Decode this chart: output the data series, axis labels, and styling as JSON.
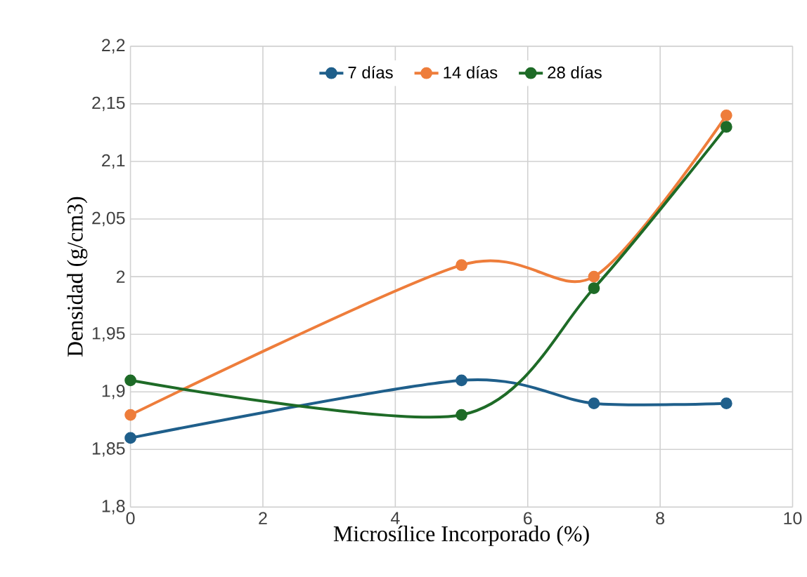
{
  "chart_data": {
    "type": "line",
    "xlabel": "Microsílice Incorporado (%)",
    "ylabel": "Densidad (g/cm3)",
    "x": [
      0,
      5,
      7,
      9
    ],
    "series": [
      {
        "name": "7 días",
        "color": "#1f5f8b",
        "values": [
          1.86,
          1.91,
          1.89,
          1.89
        ]
      },
      {
        "name": "14 días",
        "color": "#ee7d3b",
        "values": [
          1.88,
          2.01,
          2.0,
          2.14
        ]
      },
      {
        "name": "28 días",
        "color": "#1e6b27",
        "values": [
          1.91,
          1.88,
          1.99,
          2.13
        ]
      }
    ],
    "xlim": [
      0,
      10
    ],
    "xticks": [
      0,
      2,
      4,
      6,
      8,
      10
    ],
    "ylim": [
      1.8,
      2.2
    ],
    "yticks": [
      {
        "value": 1.8,
        "label": "1,8"
      },
      {
        "value": 1.85,
        "label": "1,85"
      },
      {
        "value": 1.9,
        "label": "1,9"
      },
      {
        "value": 1.95,
        "label": "1,95"
      },
      {
        "value": 2.0,
        "label": "2"
      },
      {
        "value": 2.05,
        "label": "2,05"
      },
      {
        "value": 2.1,
        "label": "2,1"
      },
      {
        "value": 2.15,
        "label": "2,15"
      },
      {
        "value": 2.2,
        "label": "2,2"
      }
    ],
    "grid": true,
    "legend": "top",
    "marker": "circle",
    "line_style": "solid"
  }
}
